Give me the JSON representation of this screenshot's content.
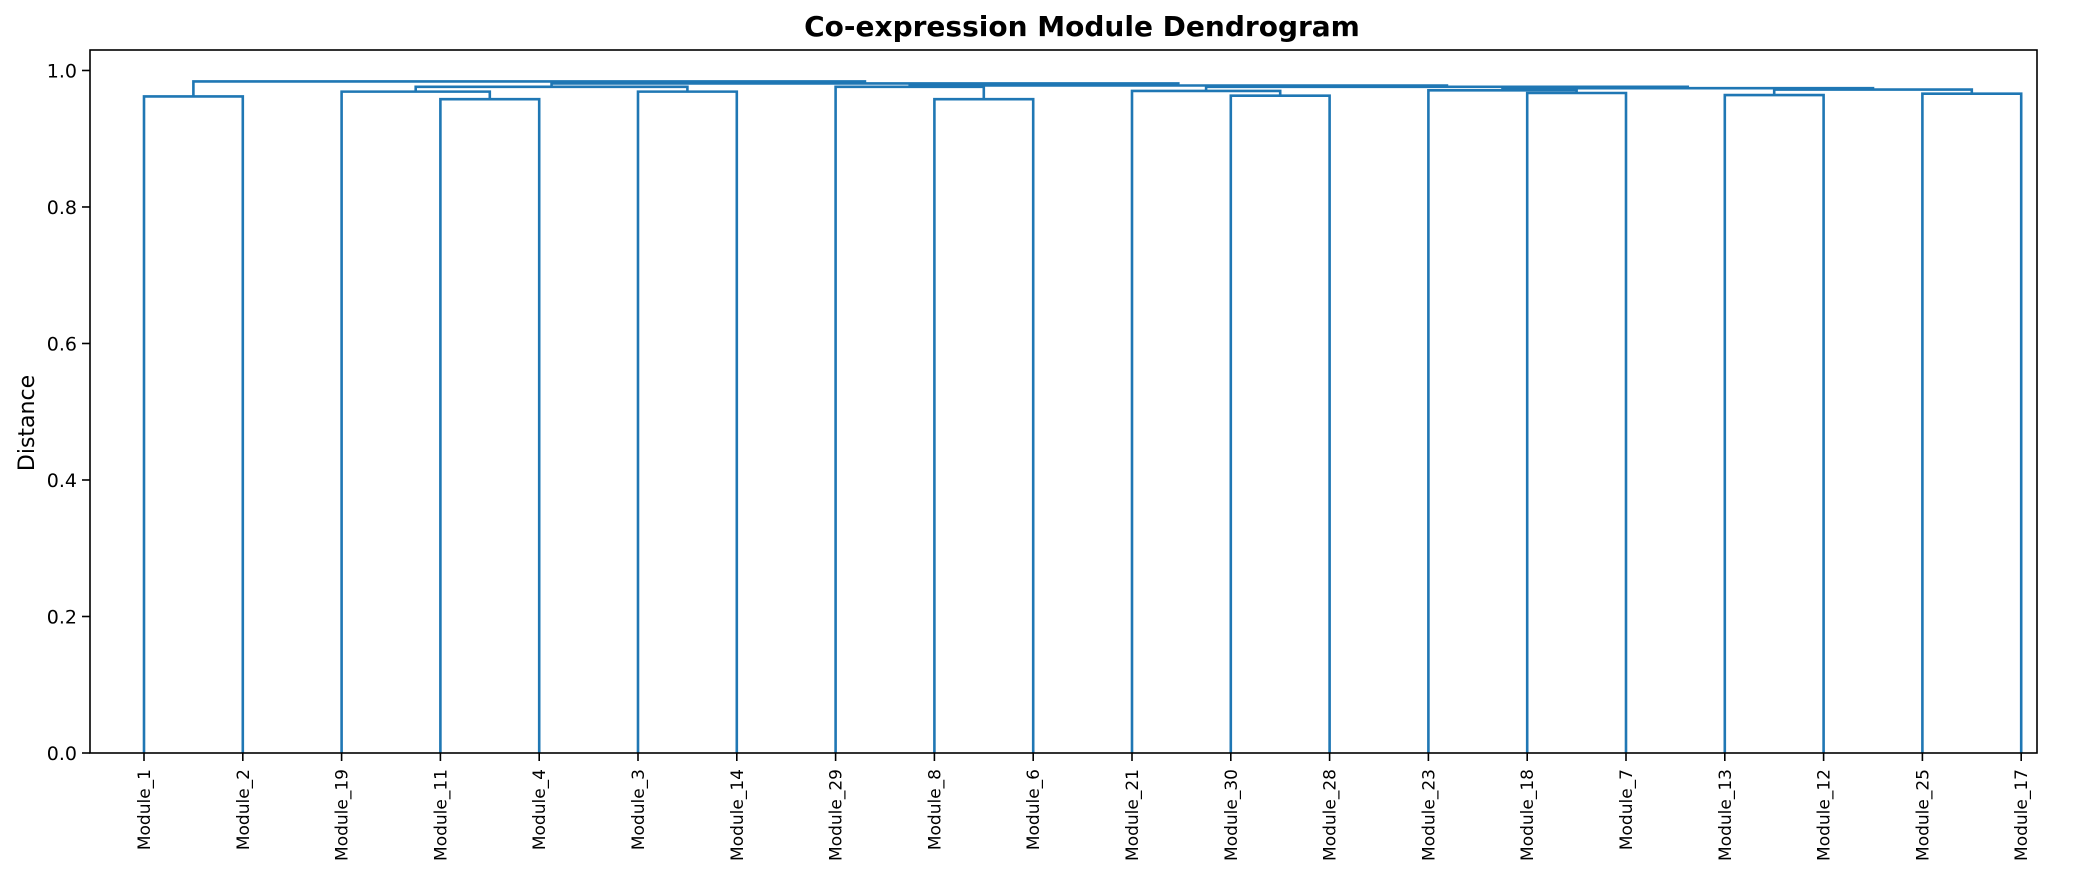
{
  "chart_data": {
    "type": "dendrogram",
    "title": "Co-expression Module Dendrogram",
    "xlabel": "",
    "ylabel": "Distance",
    "ylim": [
      0.0,
      1.03
    ],
    "yticks": [
      0.0,
      0.2,
      0.4,
      0.6,
      0.8,
      1.0
    ],
    "ytick_labels": [
      "0.0",
      "0.2",
      "0.4",
      "0.6",
      "0.8",
      "1.0"
    ],
    "grid": false,
    "link_color": "#1f77b4",
    "leaves": [
      "Module_1",
      "Module_2",
      "Module_19",
      "Module_11",
      "Module_4",
      "Module_3",
      "Module_14",
      "Module_29",
      "Module_8",
      "Module_6",
      "Module_21",
      "Module_30",
      "Module_28",
      "Module_23",
      "Module_18",
      "Module_7",
      "Module_13",
      "Module_12",
      "Module_25",
      "Module_17"
    ],
    "merges": [
      {
        "a": "L0",
        "b": "L1",
        "height": 0.962
      },
      {
        "a": "L3",
        "b": "L4",
        "height": 0.958
      },
      {
        "a": "L2",
        "b": "N1",
        "height": 0.969
      },
      {
        "a": "L5",
        "b": "L6",
        "height": 0.969
      },
      {
        "a": "N2",
        "b": "N3",
        "height": 0.976
      },
      {
        "a": "L8",
        "b": "L9",
        "height": 0.958
      },
      {
        "a": "L7",
        "b": "N5",
        "height": 0.976
      },
      {
        "a": "L11",
        "b": "L12",
        "height": 0.963
      },
      {
        "a": "L10",
        "b": "N7",
        "height": 0.97
      },
      {
        "a": "L14",
        "b": "L15",
        "height": 0.967
      },
      {
        "a": "L13",
        "b": "N9",
        "height": 0.971
      },
      {
        "a": "L16",
        "b": "L17",
        "height": 0.964
      },
      {
        "a": "L18",
        "b": "L19",
        "height": 0.966
      },
      {
        "a": "N11",
        "b": "N12",
        "height": 0.972
      },
      {
        "a": "N10",
        "b": "N13",
        "height": 0.974
      },
      {
        "a": "N8",
        "b": "N14",
        "height": 0.976
      },
      {
        "a": "N6",
        "b": "N15",
        "height": 0.978
      },
      {
        "a": "N4",
        "b": "N16",
        "height": 0.981
      },
      {
        "a": "N0",
        "b": "N17",
        "height": 0.984
      }
    ]
  }
}
